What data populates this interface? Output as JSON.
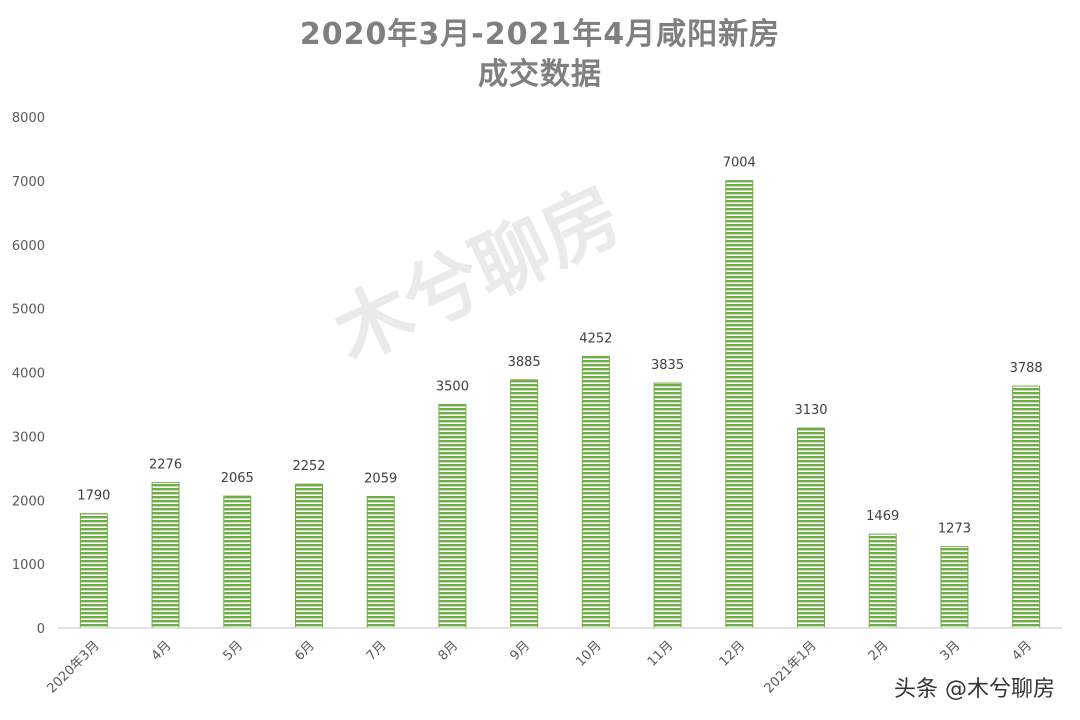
{
  "chart_data": {
    "type": "bar",
    "title_lines": [
      "2020年3月-2021年4月咸阳新房",
      "成交数据"
    ],
    "categories": [
      "2020年3月",
      "4月",
      "5月",
      "6月",
      "7月",
      "8月",
      "9月",
      "10月",
      "11月",
      "12月",
      "2021年1月",
      "2月",
      "3月",
      "4月"
    ],
    "values": [
      1790,
      2276,
      2065,
      2252,
      2059,
      3500,
      3885,
      4252,
      3835,
      7004,
      3130,
      1469,
      1273,
      3788
    ],
    "ylim": [
      0,
      8000
    ],
    "yticks": [
      0,
      1000,
      2000,
      3000,
      4000,
      5000,
      6000,
      7000,
      8000
    ],
    "grid": false,
    "bar_color": "#70ad47",
    "bar_stripe_color": "#e2f0d9"
  },
  "watermark": "木兮聊房",
  "credit": "头条 @木兮聊房"
}
